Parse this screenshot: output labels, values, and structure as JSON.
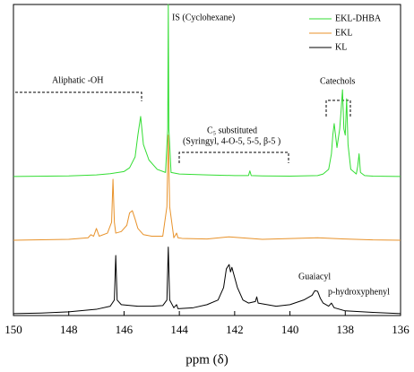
{
  "chart_data": {
    "type": "line",
    "xlabel": "ppm (δ)",
    "xlim": [
      150,
      136
    ],
    "xticks": [
      150,
      148,
      146,
      144,
      142,
      140,
      138,
      136
    ],
    "ylim": [
      0,
      100
    ],
    "legend": "upper right",
    "annotations": [
      "IS (Cyclohexane)",
      "Aliphatic -OH",
      "C₅ substituted",
      "(Syringyl, 4-O-5, 5-5, β-5 )",
      "Catechols",
      "Guaiacyl",
      "p-hydroxyphenyl"
    ],
    "series": [
      {
        "name": "EKL-DHBA",
        "color": "#33dd33",
        "x": [
          150,
          148,
          147,
          146.5,
          146,
          145.8,
          145.6,
          145.5,
          145.4,
          145.3,
          145.1,
          144.8,
          144.5,
          144.42,
          144.4,
          144.38,
          144.3,
          144,
          143,
          142,
          141.5,
          141.45,
          141.4,
          141,
          140,
          139,
          138.8,
          138.6,
          138.5,
          138.45,
          138.4,
          138.3,
          138.2,
          138.15,
          138.1,
          138.05,
          138.0,
          137.95,
          137.9,
          137.8,
          137.6,
          137.55,
          137.5,
          137.45,
          137.3,
          137,
          136
        ],
        "values": [
          44.7,
          44.9,
          45.2,
          45.6,
          46.3,
          47.5,
          51,
          58,
          64,
          55,
          50,
          47,
          46,
          60,
          100,
          60,
          46,
          45.5,
          45.2,
          45,
          45,
          46.5,
          45,
          44.9,
          44.8,
          45,
          45.5,
          47,
          52,
          58,
          61.7,
          54,
          60,
          66,
          72.6,
          60,
          58,
          69.7,
          55,
          47,
          45.5,
          48,
          52,
          46,
          45,
          44.8,
          44.7
        ]
      },
      {
        "name": "EKL",
        "color": "#e8922a",
        "x": [
          150,
          148,
          147.3,
          147.2,
          147.1,
          147,
          146.9,
          146.6,
          146.45,
          146.4,
          146.35,
          146.3,
          146.1,
          145.9,
          145.8,
          145.7,
          145.6,
          145.5,
          145.3,
          145,
          144.6,
          144.45,
          144.4,
          144.35,
          144.2,
          144.1,
          144.05,
          143.9,
          143,
          142.2,
          141,
          139,
          138,
          137,
          136
        ],
        "values": [
          24.2,
          24.5,
          25,
          26,
          25.5,
          28,
          25.5,
          26.5,
          30,
          43.8,
          30,
          26.5,
          27,
          29,
          33,
          33.7,
          31,
          28,
          26,
          25.5,
          25.5,
          35,
          58,
          35,
          25,
          26.5,
          25,
          24.8,
          24.6,
          25.3,
          24.5,
          25,
          24.6,
          24.3,
          24.2
        ]
      },
      {
        "name": "KL",
        "color": "#000000",
        "x": [
          150,
          149,
          148,
          147,
          146.5,
          146.35,
          146.3,
          146.25,
          146.1,
          145.5,
          145,
          144.6,
          144.45,
          144.4,
          144.35,
          144.2,
          144.1,
          144.05,
          143.5,
          143,
          142.6,
          142.4,
          142.3,
          142.2,
          142.15,
          142.1,
          141.9,
          141.7,
          141.5,
          141.25,
          141.2,
          141.15,
          140.5,
          140,
          139.5,
          139.2,
          139.1,
          139.0,
          138.9,
          138.8,
          138.6,
          138.5,
          138.4,
          138,
          137,
          136
        ],
        "values": [
          0.6,
          0.8,
          1.2,
          2,
          3,
          5,
          19.3,
          5,
          3.5,
          3,
          3,
          3.2,
          5,
          22,
          5,
          2.5,
          3.5,
          2.2,
          2.5,
          3.5,
          5,
          9,
          15,
          16.4,
          14,
          15.5,
          9,
          5,
          4,
          4.5,
          6,
          4,
          3,
          3.5,
          5,
          6.5,
          8,
          7.8,
          5.5,
          4,
          3,
          4,
          2.5,
          1.5,
          1,
          0.6
        ]
      }
    ]
  }
}
